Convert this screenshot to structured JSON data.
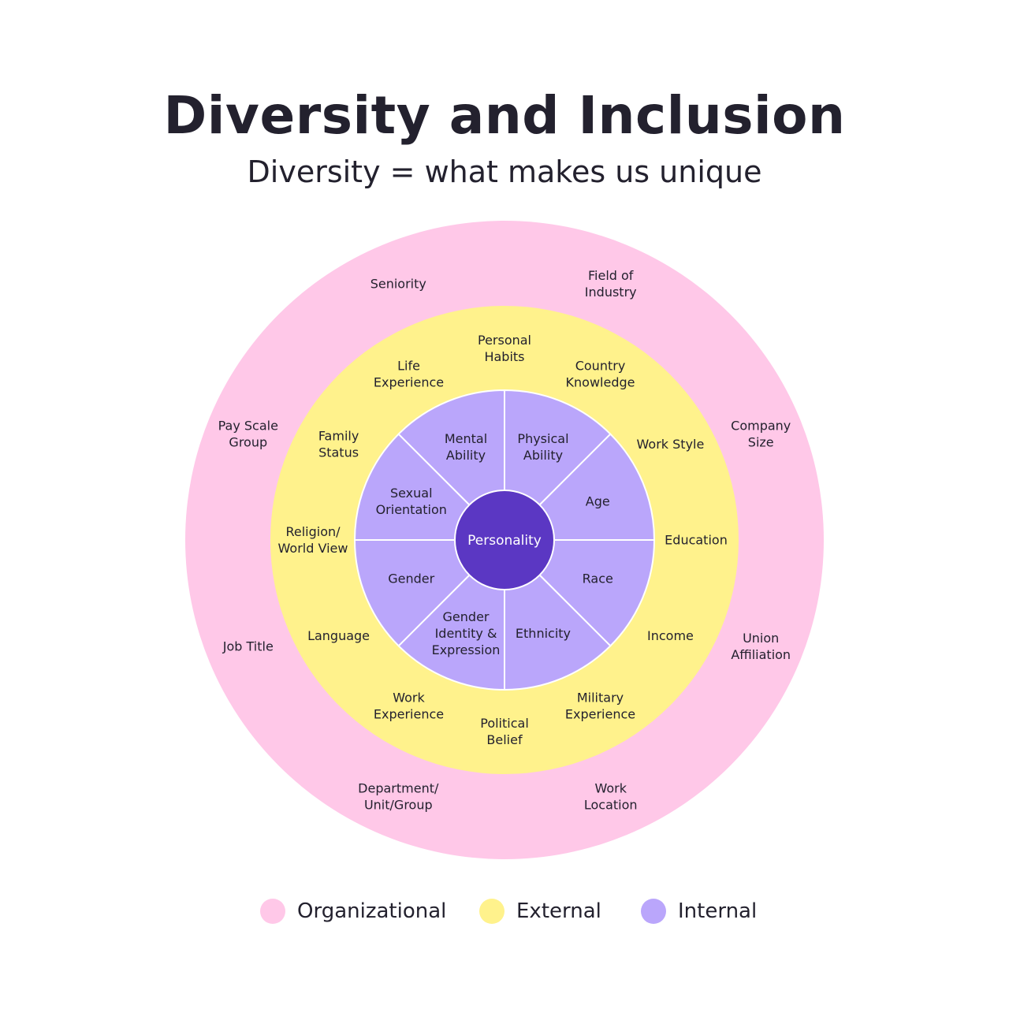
{
  "title": "Diversity and Inclusion",
  "subtitle": "Diversity = what makes us unique",
  "colors": {
    "organizational": "#ffc8e8",
    "external": "#fff28c",
    "internal": "#baa6fb",
    "core": "#5b37c3",
    "divider": "#ffffff"
  },
  "core": {
    "label": "Personality"
  },
  "internal": [
    {
      "label": [
        "Physical",
        "Ability"
      ]
    },
    {
      "label": [
        "Age"
      ]
    },
    {
      "label": [
        "Race"
      ]
    },
    {
      "label": [
        "Ethnicity"
      ]
    },
    {
      "label": [
        "Gender",
        "Identity &",
        "Expression"
      ]
    },
    {
      "label": [
        "Gender"
      ]
    },
    {
      "label": [
        "Sexual",
        "Orientation"
      ]
    },
    {
      "label": [
        "Mental",
        "Ability"
      ]
    }
  ],
  "external": [
    {
      "label": [
        "Personal",
        "Habits"
      ]
    },
    {
      "label": [
        "Country",
        "Knowledge"
      ]
    },
    {
      "label": [
        "Work Style"
      ]
    },
    {
      "label": [
        "Education"
      ]
    },
    {
      "label": [
        "Income"
      ]
    },
    {
      "label": [
        "Military",
        "Experience"
      ]
    },
    {
      "label": [
        "Political",
        "Belief"
      ]
    },
    {
      "label": [
        "Work",
        "Experience"
      ]
    },
    {
      "label": [
        "Language"
      ]
    },
    {
      "label": [
        "Religion/",
        "World View"
      ]
    },
    {
      "label": [
        "Family",
        "Status"
      ]
    },
    {
      "label": [
        "Life",
        "Experience"
      ]
    }
  ],
  "organizational": [
    {
      "label": [
        "Field of",
        "Industry"
      ]
    },
    {
      "label": [
        "Company",
        "Size"
      ]
    },
    {
      "label": [
        "Union",
        "Affiliation"
      ]
    },
    {
      "label": [
        "Work",
        "Location"
      ]
    },
    {
      "label": [
        "Department/",
        "Unit/Group"
      ]
    },
    {
      "label": [
        "Job Title"
      ]
    },
    {
      "label": [
        "Pay Scale",
        "Group"
      ]
    },
    {
      "label": [
        "Seniority"
      ]
    }
  ],
  "legend": [
    {
      "key": "organizational",
      "label": "Organizational"
    },
    {
      "key": "external",
      "label": "External"
    },
    {
      "key": "internal",
      "label": "Internal"
    }
  ]
}
